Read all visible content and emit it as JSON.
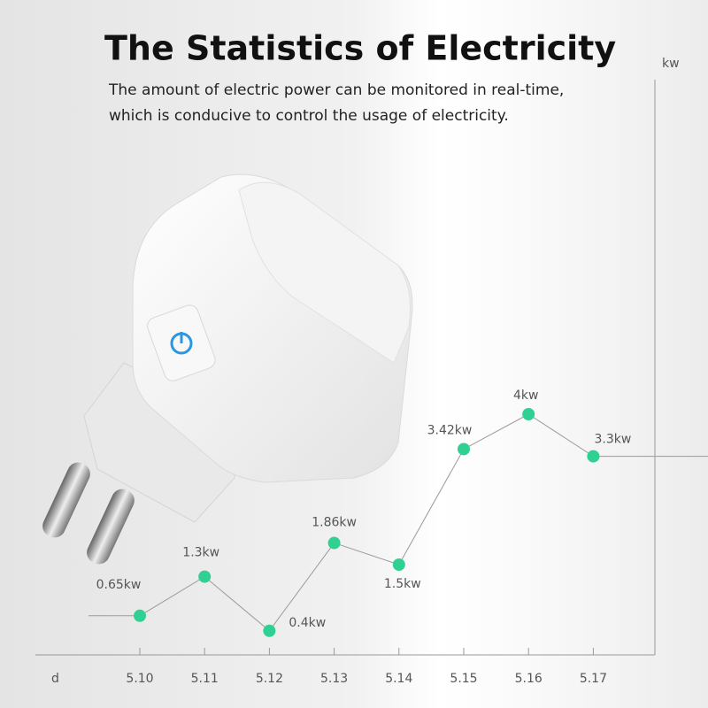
{
  "chart_data": {
    "type": "line",
    "title": "The Statistics of Electricity",
    "subtitle": [
      "The amount of electric power can be monitored in real-time,",
      "which is conducive to control the usage of electricity."
    ],
    "y_label": "kw",
    "x_label": "d",
    "categories": [
      "5.10",
      "5.11",
      "5.12",
      "5.13",
      "5.14",
      "5.15",
      "5.16",
      "5.17"
    ],
    "values": [
      0.65,
      1.3,
      0.4,
      1.86,
      1.5,
      3.42,
      4,
      3.3
    ],
    "value_labels": [
      "0.65kw",
      "1.3kw",
      "0.4kw",
      "1.86kw",
      "1.5kw",
      "3.42kw",
      "4kw",
      "3.3kw"
    ],
    "color": "#2fd192",
    "line_color": "#9a9a9a",
    "ylim": [
      0,
      10
    ]
  }
}
